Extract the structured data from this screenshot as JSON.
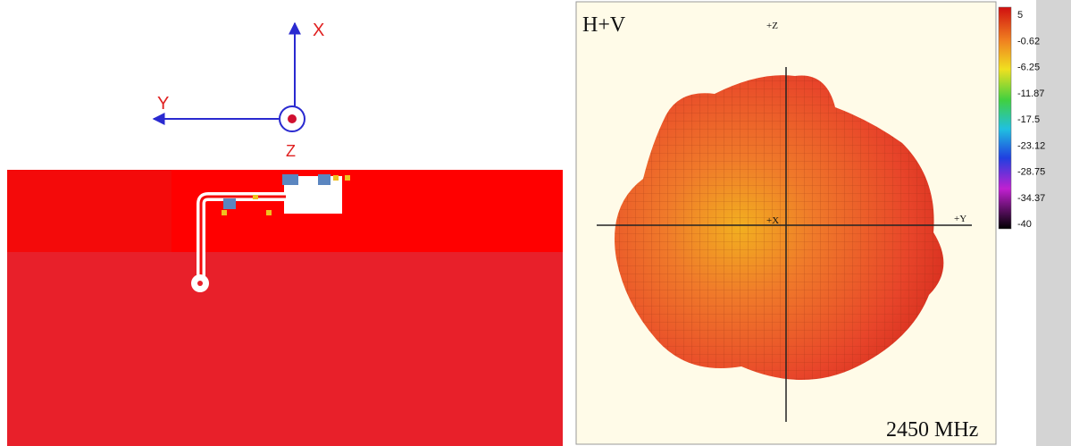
{
  "left_panel": {
    "axes": {
      "x": "X",
      "y": "Y",
      "z": "Z"
    }
  },
  "right_panel": {
    "title": "H+V",
    "axis_labels": {
      "z": "+Z",
      "y": "+Y",
      "x": "+X"
    },
    "colorbar": {
      "labels": [
        "5",
        "-0.62",
        "-6.25",
        "-11.87",
        "-17.5",
        "-23.12",
        "-28.75",
        "-34.37",
        "-40"
      ]
    },
    "frequency": "2450 MHz"
  }
}
